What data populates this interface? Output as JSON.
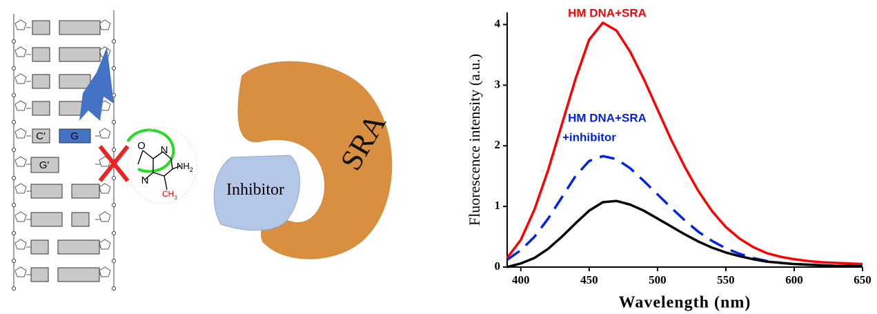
{
  "diagram": {
    "c_prime": "C'",
    "g": "G",
    "g_prime": "G'",
    "oxygen": "O",
    "n1": "N",
    "n3": "N",
    "amine": [
      "NH",
      "2"
    ],
    "methyl": [
      "CH",
      "3"
    ],
    "inhibitor": "Inhibitor",
    "sra": "SRA"
  },
  "chart_data": {
    "type": "line",
    "x_label": "Wavelength (nm)",
    "y_label": "Fluorescence intensity (a.u.)",
    "x": [
      390,
      400,
      410,
      420,
      430,
      440,
      450,
      460,
      470,
      480,
      490,
      500,
      510,
      520,
      530,
      540,
      550,
      560,
      570,
      580,
      590,
      600,
      610,
      620,
      630,
      640,
      650
    ],
    "series": [
      {
        "color": "#ff0000",
        "dash": false,
        "values": [
          0.15,
          0.45,
          0.95,
          1.6,
          2.35,
          3.1,
          3.75,
          4.03,
          3.9,
          3.55,
          3.1,
          2.6,
          2.1,
          1.65,
          1.25,
          0.92,
          0.66,
          0.47,
          0.33,
          0.23,
          0.17,
          0.13,
          0.1,
          0.08,
          0.07,
          0.06,
          0.05
        ]
      },
      {
        "color": "#0022ee",
        "dash": true,
        "values": [
          0.12,
          0.28,
          0.5,
          0.8,
          1.15,
          1.5,
          1.75,
          1.83,
          1.78,
          1.63,
          1.42,
          1.2,
          0.98,
          0.77,
          0.58,
          0.43,
          0.31,
          0.22,
          0.15,
          0.1,
          0.07,
          0.05,
          0.04,
          0.03,
          0.02,
          0.02,
          0.01
        ]
      },
      {
        "color": "#000000",
        "dash": false,
        "values": [
          0.0,
          0.06,
          0.15,
          0.3,
          0.5,
          0.72,
          0.93,
          1.07,
          1.09,
          1.03,
          0.93,
          0.8,
          0.67,
          0.54,
          0.42,
          0.32,
          0.24,
          0.18,
          0.13,
          0.09,
          0.07,
          0.05,
          0.04,
          0.03,
          0.02,
          0.02,
          0.01
        ]
      }
    ],
    "annotations": [
      {
        "lines": [
          "HM DNA+SRA"
        ],
        "color": "#ff0000"
      },
      {
        "lines": [
          "HM DNA+SRA",
          "+inhibitor"
        ],
        "color": "#0022ee"
      }
    ],
    "xlim": [
      390,
      650
    ],
    "xticks": [
      400,
      450,
      500,
      550,
      600,
      650
    ],
    "ylim": [
      0,
      4.2
    ],
    "yticks": [
      0,
      1,
      2,
      3,
      4
    ]
  }
}
